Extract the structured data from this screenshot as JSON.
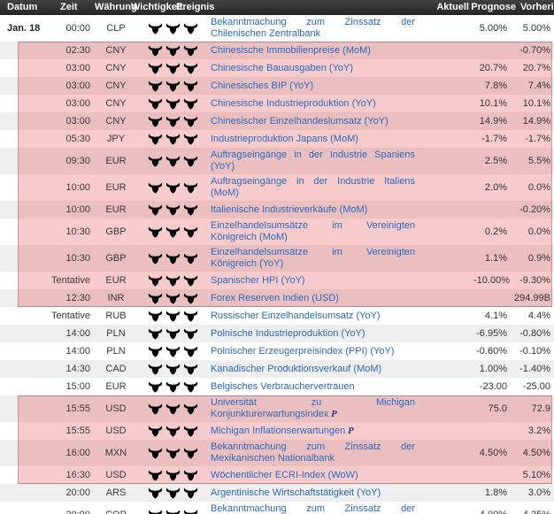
{
  "table": {
    "headers": {
      "datum": "Datum",
      "zeit": "Zeit",
      "waehrung": "Währung",
      "wichtigkeit": "Wichtigkeit",
      "ereignis": "Ereignis",
      "aktuell": "Aktuell",
      "prognose": "Prognose",
      "vorherig": "Vorherig"
    },
    "importance_icon": "bull-icon",
    "importance_max": 3,
    "rows": [
      {
        "datum": "Jan. 18",
        "zeit": "00:00",
        "waehrung": "CLP",
        "importance": 1,
        "ereignis": "Bekanntmachung zum Zinssatz der Chilenischen Zentralbank",
        "suffix": "",
        "aktuell": "",
        "prognose": "5.00%",
        "vorherig": "5.00%",
        "highlight": false,
        "two_line": true
      },
      {
        "datum": "",
        "zeit": "02:30",
        "waehrung": "CNY",
        "importance": 1,
        "ereignis": "Chinesische Immobilienpreise (MoM)",
        "suffix": "",
        "aktuell": "",
        "prognose": "",
        "vorherig": "-0.70%",
        "highlight": true,
        "two_line": false
      },
      {
        "datum": "",
        "zeit": "03:00",
        "waehrung": "CNY",
        "importance": 2,
        "ereignis": "Chinesische Bauausgaben (YoY)",
        "suffix": "",
        "aktuell": "",
        "prognose": "20.7%",
        "vorherig": "20.7%",
        "highlight": true,
        "two_line": false
      },
      {
        "datum": "",
        "zeit": "03:00",
        "waehrung": "CNY",
        "importance": 3,
        "ereignis": "Chinesisches BIP (YoY)",
        "suffix": "",
        "aktuell": "",
        "prognose": "7.8%",
        "vorherig": "7.4%",
        "highlight": true,
        "two_line": false
      },
      {
        "datum": "",
        "zeit": "03:00",
        "waehrung": "CNY",
        "importance": 2,
        "ereignis": "Chinesische Industrieproduktion (YoY)",
        "suffix": "",
        "aktuell": "",
        "prognose": "10.1%",
        "vorherig": "10.1%",
        "highlight": true,
        "two_line": false
      },
      {
        "datum": "",
        "zeit": "03:00",
        "waehrung": "CNY",
        "importance": 2,
        "ereignis": "Chinesischer Einzelhandeslumsatz (YoY)",
        "suffix": "",
        "aktuell": "",
        "prognose": "14.9%",
        "vorherig": "14.9%",
        "highlight": true,
        "two_line": false
      },
      {
        "datum": "",
        "zeit": "05:30",
        "waehrung": "JPY",
        "importance": 2,
        "ereignis": "Industrieproduktion Japans (MoM)",
        "suffix": "",
        "aktuell": "",
        "prognose": "-1.7%",
        "vorherig": "-1.7%",
        "highlight": true,
        "two_line": false
      },
      {
        "datum": "",
        "zeit": "09:30",
        "waehrung": "EUR",
        "importance": 1,
        "ereignis": "Auftragseingänge in der Industrie Spaniens (YoY)",
        "suffix": "",
        "aktuell": "",
        "prognose": "2.5%",
        "vorherig": "5.5%",
        "highlight": true,
        "two_line": false
      },
      {
        "datum": "",
        "zeit": "10:00",
        "waehrung": "EUR",
        "importance": 1,
        "ereignis": "Auftragseingänge in der Industrie Italiens (MoM)",
        "suffix": "",
        "aktuell": "",
        "prognose": "2.0%",
        "vorherig": "0.0%",
        "highlight": true,
        "two_line": false
      },
      {
        "datum": "",
        "zeit": "10:00",
        "waehrung": "EUR",
        "importance": 1,
        "ereignis": "Italienische Industrieverkäufe (MoM)",
        "suffix": "",
        "aktuell": "",
        "prognose": "",
        "vorherig": "-0.20%",
        "highlight": true,
        "two_line": false
      },
      {
        "datum": "",
        "zeit": "10:30",
        "waehrung": "GBP",
        "importance": 3,
        "ereignis": "Einzelhandelsumsätze im Vereinigten Königreich (MoM)",
        "suffix": "",
        "aktuell": "",
        "prognose": "0.2%",
        "vorherig": "0.0%",
        "highlight": true,
        "two_line": true
      },
      {
        "datum": "",
        "zeit": "10:30",
        "waehrung": "GBP",
        "importance": 3,
        "ereignis": "Einzelhandelsumsätze im Vereinigten Königreich (YoY)",
        "suffix": "",
        "aktuell": "",
        "prognose": "1.1%",
        "vorherig": "0.9%",
        "highlight": true,
        "two_line": true
      },
      {
        "datum": "",
        "zeit": "Tentative",
        "waehrung": "EUR",
        "importance": 1,
        "ereignis": "Spanischer HPI (YoY)",
        "suffix": "",
        "aktuell": "",
        "prognose": "-10.00%",
        "vorherig": "-9.30%",
        "highlight": true,
        "two_line": false
      },
      {
        "datum": "",
        "zeit": "12:30",
        "waehrung": "INR",
        "importance": 1,
        "ereignis": "Forex Reserven Indien (USD)",
        "suffix": "",
        "aktuell": "",
        "prognose": "",
        "vorherig": "294.99B",
        "highlight": true,
        "two_line": false
      },
      {
        "datum": "",
        "zeit": "Tentative",
        "waehrung": "RUB",
        "importance": 1,
        "ereignis": "Russischer Einzelhandelsumsatz (YoY)",
        "suffix": "",
        "aktuell": "",
        "prognose": "4.1%",
        "vorherig": "4.4%",
        "highlight": false,
        "two_line": false
      },
      {
        "datum": "",
        "zeit": "14:00",
        "waehrung": "PLN",
        "importance": 1,
        "ereignis": "Polnische Industrieproduktion (YoY)",
        "suffix": "",
        "aktuell": "",
        "prognose": "-6.95%",
        "vorherig": "-0.80%",
        "highlight": false,
        "two_line": false
      },
      {
        "datum": "",
        "zeit": "14:00",
        "waehrung": "PLN",
        "importance": 1,
        "ereignis": "Polnischer Erzeugerpreisindex (PPI) (YoY)",
        "suffix": "",
        "aktuell": "",
        "prognose": "-0.60%",
        "vorherig": "-0.10%",
        "highlight": false,
        "two_line": false
      },
      {
        "datum": "",
        "zeit": "14:30",
        "waehrung": "CAD",
        "importance": 2,
        "ereignis": "Kanadischer Produktionsverkauf (MoM)",
        "suffix": "",
        "aktuell": "",
        "prognose": "1.00%",
        "vorherig": "-1.40%",
        "highlight": false,
        "two_line": false
      },
      {
        "datum": "",
        "zeit": "15:00",
        "waehrung": "EUR",
        "importance": 1,
        "ereignis": "Belgisches Verbrauchervertrauen",
        "suffix": "",
        "aktuell": "",
        "prognose": "-23.00",
        "vorherig": "-25.00",
        "highlight": false,
        "two_line": false
      },
      {
        "datum": "",
        "zeit": "15:55",
        "waehrung": "USD",
        "importance": 2,
        "ereignis": "Universität zu Michigan Konjunkturerwartungsindex",
        "suffix": "P",
        "aktuell": "",
        "prognose": "75.0",
        "vorherig": "72.9",
        "highlight": true,
        "two_line": true
      },
      {
        "datum": "",
        "zeit": "15:55",
        "waehrung": "USD",
        "importance": 1,
        "ereignis": "Michigan Inflationserwartungen",
        "suffix": "P",
        "aktuell": "",
        "prognose": "",
        "vorherig": "3.2%",
        "highlight": true,
        "two_line": false
      },
      {
        "datum": "",
        "zeit": "16:00",
        "waehrung": "MXN",
        "importance": 2,
        "ereignis": "Bekanntmachung zum Zinssatz der Mexikanischen Nationalbank",
        "suffix": "",
        "aktuell": "",
        "prognose": "4.50%",
        "vorherig": "4.50%",
        "highlight": true,
        "two_line": true
      },
      {
        "datum": "",
        "zeit": "16:30",
        "waehrung": "USD",
        "importance": 1,
        "ereignis": "Wöchentlicher ECRI-Index (WoW)",
        "suffix": "",
        "aktuell": "",
        "prognose": "",
        "vorherig": "5.10%",
        "highlight": true,
        "two_line": false
      },
      {
        "datum": "",
        "zeit": "20:00",
        "waehrung": "ARS",
        "importance": 2,
        "ereignis": "Argentinische Wirtschaftstätigkeit (YoY)",
        "suffix": "",
        "aktuell": "",
        "prognose": "1.8%",
        "vorherig": "3.0%",
        "highlight": false,
        "two_line": false
      },
      {
        "datum": "",
        "zeit": "20:00",
        "waehrung": "COP",
        "importance": 1,
        "ereignis": "Bekanntmachung zum Zinssatz der Kolumbianischen Zentralbank",
        "suffix": "",
        "aktuell": "",
        "prognose": "4.00%",
        "vorherig": "4.25%",
        "highlight": false,
        "two_line": true
      }
    ]
  },
  "colors": {
    "header_bg": "#2e2e2e",
    "link_blue": "#2a69bd",
    "zebra_gray": "#efefef",
    "highlight_pink": "rgba(222,48,48,0.25)",
    "bull_active": "#c01212",
    "bull_inactive": "#efe6e6"
  }
}
